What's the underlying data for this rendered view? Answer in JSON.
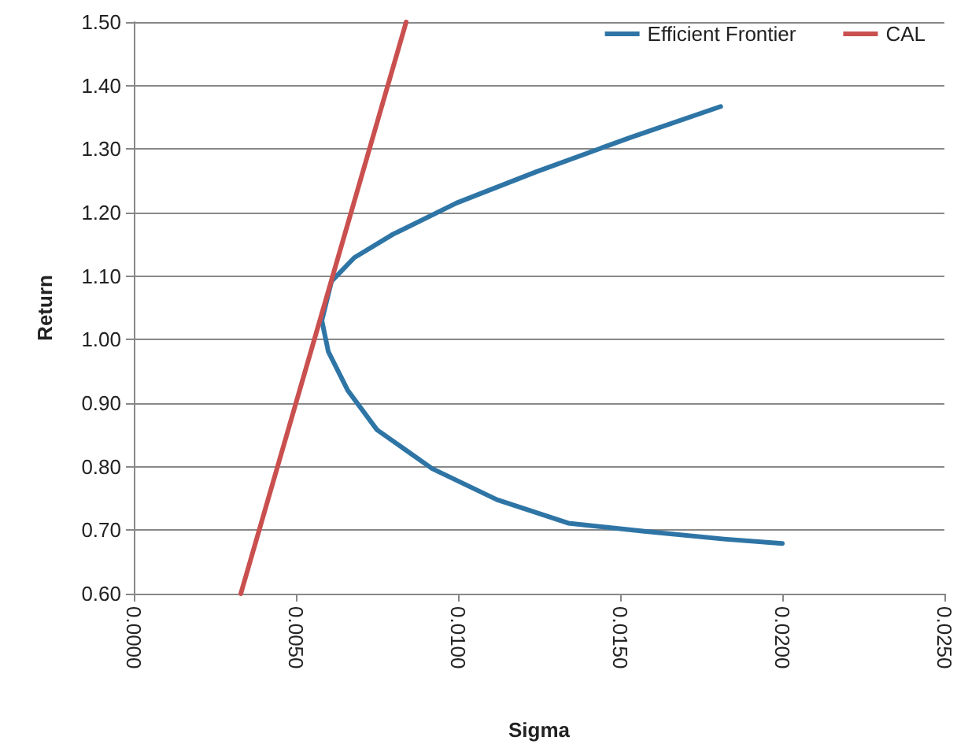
{
  "chart_data": {
    "type": "line",
    "xlabel": "Sigma",
    "ylabel": "Return",
    "xlim": [
      0,
      0.025
    ],
    "xticks": [
      {
        "value": 0,
        "label": "0.0000"
      },
      {
        "value": 0.005,
        "label": "0.0050"
      },
      {
        "value": 0.01,
        "label": "0.0100"
      },
      {
        "value": 0.015,
        "label": "0.0150"
      },
      {
        "value": 0.02,
        "label": "0.0200"
      },
      {
        "value": 0.025,
        "label": "0.0250"
      }
    ],
    "ylim": [
      0.6,
      1.5
    ],
    "yticks": [
      {
        "value": 0.6,
        "label": "0.60"
      },
      {
        "value": 0.7,
        "label": "0.70"
      },
      {
        "value": 0.8,
        "label": "0.80"
      },
      {
        "value": 0.9,
        "label": "0.90"
      },
      {
        "value": 1.0,
        "label": "1.00"
      },
      {
        "value": 1.1,
        "label": "1.10"
      },
      {
        "value": 1.2,
        "label": "1.20"
      },
      {
        "value": 1.3,
        "label": "1.30"
      },
      {
        "value": 1.4,
        "label": "1.40"
      },
      {
        "value": 1.5,
        "label": "1.50"
      }
    ],
    "grid": "y",
    "legend": "top right",
    "marker": "none",
    "line_style": "solid",
    "series": [
      {
        "name": "Efficient Frontier",
        "color": "#2e75a6",
        "x": [
          0.02,
          0.0182,
          0.0158,
          0.0134,
          0.0112,
          0.0092,
          0.0075,
          0.0066,
          0.006,
          0.0058,
          0.0061,
          0.0068,
          0.008,
          0.00995,
          0.0124,
          0.0153,
          0.0181
        ],
        "values": [
          0.679,
          0.686,
          0.698,
          0.711,
          0.748,
          0.797,
          0.858,
          0.92,
          0.981,
          1.03,
          1.092,
          1.129,
          1.166,
          1.215,
          1.264,
          1.318,
          1.367
        ]
      },
      {
        "name": "CAL",
        "color": "#c9504f",
        "x": [
          0.0033,
          0.0084
        ],
        "values": [
          0.6,
          1.5
        ]
      }
    ]
  }
}
